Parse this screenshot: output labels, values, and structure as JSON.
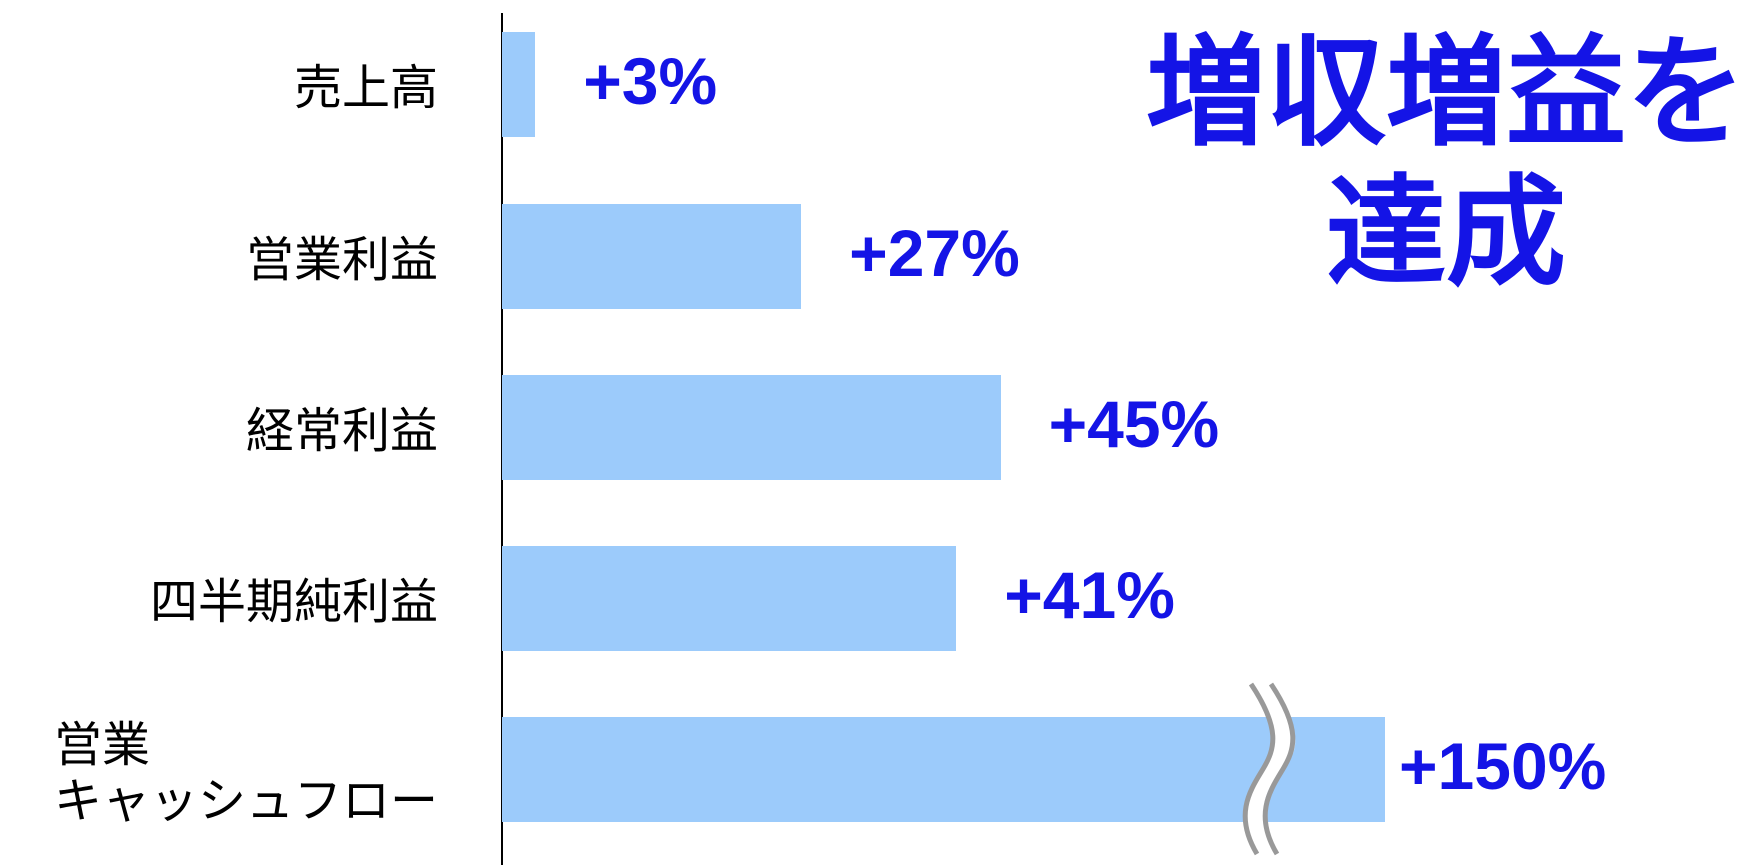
{
  "chart_data": {
    "type": "bar",
    "orientation": "horizontal",
    "title": "増収増益を\n達成",
    "categories": [
      "売上高",
      "営業利益",
      "経常利益",
      "四半期純利益",
      "営業\nキャッシュフロー"
    ],
    "values": [
      3,
      27,
      45,
      41,
      150
    ],
    "value_labels": [
      "+3%",
      "+27%",
      "+45%",
      "+41%",
      "+150%"
    ],
    "color": "#9ccbfb",
    "label_color": "#1414e6",
    "title_color": "#1414e6"
  }
}
